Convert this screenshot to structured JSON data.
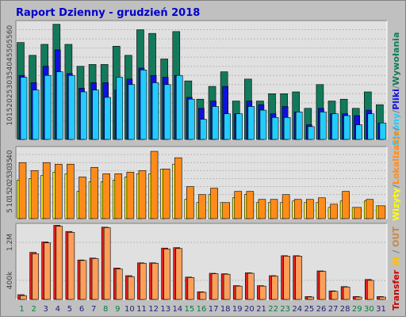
{
  "title": "Raport Dzienny -  grudzień 2018",
  "colors": {
    "background": "#c0c0c0",
    "panel": "#e0e0e0",
    "title": "#0000cc",
    "weekday_label": "#202080",
    "weekend_label": "#008040",
    "wywolania": "#127a5b",
    "pliki": "#1010e0",
    "strony": "#22ccff",
    "wizyty": "#ffff00",
    "lokalizacje": "#ff8c1a",
    "transfer_in": "#dd2222",
    "transfer_out": "#ff9e58",
    "legend_transfer": "#cc0000",
    "legend_in": "#ffc000",
    "legend_out": "#cc8844"
  },
  "legend": {
    "wywolania": "Wywołania",
    "pliki": "Pliki",
    "strony": "Strony",
    "wizyty": "Wizyty",
    "lokalizacje": "Lokalizacje",
    "transfer": "Transfer",
    "in": "IN",
    "out": "OUT",
    "sep1": "/",
    "sep2": "/",
    "sep3": "/",
    "sep4": "/"
  },
  "chart_data": [
    {
      "type": "bar",
      "panel": "top",
      "categories": [
        "1",
        "2",
        "3",
        "4",
        "5",
        "6",
        "7",
        "8",
        "9",
        "10",
        "11",
        "12",
        "13",
        "14",
        "15",
        "16",
        "17",
        "18",
        "19",
        "20",
        "21",
        "22",
        "23",
        "24",
        "25",
        "26",
        "27",
        "28",
        "29",
        "30",
        "31"
      ],
      "weekend_categories": [
        "1",
        "2",
        "8",
        "9",
        "15",
        "16",
        "22",
        "23",
        "29",
        "30"
      ],
      "ylim": [
        0,
        65
      ],
      "yticks": [
        "10",
        "15",
        "20",
        "25",
        "30",
        "35",
        "40",
        "45",
        "50",
        "55",
        "60"
      ],
      "series": [
        {
          "name": "Wywołania",
          "values": [
            53,
            46,
            52,
            63,
            52,
            40,
            41,
            41,
            51,
            46,
            60,
            58,
            44,
            59,
            32,
            22,
            29,
            37,
            21,
            33,
            21,
            25,
            25,
            26,
            17,
            30,
            21,
            22,
            17,
            26,
            19
          ]
        },
        {
          "name": "Pliki",
          "values": [
            35,
            31,
            40,
            49,
            36,
            28,
            31,
            31,
            27,
            33,
            39,
            35,
            34,
            35,
            23,
            17,
            21,
            29,
            14,
            21,
            19,
            14,
            18,
            15,
            8,
            17,
            14,
            14,
            13,
            16,
            9
          ]
        },
        {
          "name": "Strony",
          "values": [
            34,
            27,
            35,
            37,
            35,
            26,
            27,
            23,
            34,
            30,
            38,
            31,
            30,
            35,
            22,
            11,
            18,
            14,
            14,
            18,
            16,
            12,
            12,
            15,
            7,
            15,
            14,
            13,
            8,
            14,
            9
          ]
        }
      ]
    },
    {
      "type": "bar",
      "panel": "middle",
      "categories": [
        "1",
        "2",
        "3",
        "4",
        "5",
        "6",
        "7",
        "8",
        "9",
        "10",
        "11",
        "12",
        "13",
        "14",
        "15",
        "16",
        "17",
        "18",
        "19",
        "20",
        "21",
        "22",
        "23",
        "24",
        "25",
        "26",
        "27",
        "28",
        "29",
        "30",
        "31"
      ],
      "ylim": [
        0,
        45
      ],
      "yticks": [
        "5",
        "10",
        "15",
        "20",
        "25",
        "30",
        "35",
        "40"
      ],
      "series": [
        {
          "name": "Wizyty",
          "values": [
            24,
            25,
            27,
            29,
            28,
            17,
            23,
            23,
            24,
            26,
            28,
            28,
            31,
            34,
            12,
            10,
            15,
            10,
            13,
            15,
            10,
            10,
            10,
            11,
            10,
            10,
            7,
            11,
            7,
            11,
            8
          ]
        },
        {
          "name": "Lokalizacje",
          "values": [
            35,
            30,
            35,
            34,
            34,
            26,
            32,
            28,
            28,
            29,
            30,
            42,
            31,
            38,
            20,
            15,
            19,
            10,
            17,
            17,
            12,
            12,
            15,
            12,
            12,
            13,
            9,
            17,
            7,
            12,
            8
          ]
        }
      ]
    },
    {
      "type": "bar",
      "panel": "bottom",
      "categories": [
        "1",
        "2",
        "3",
        "4",
        "5",
        "6",
        "7",
        "8",
        "9",
        "10",
        "11",
        "12",
        "13",
        "14",
        "15",
        "16",
        "17",
        "18",
        "19",
        "20",
        "21",
        "22",
        "23",
        "24",
        "25",
        "26",
        "27",
        "28",
        "29",
        "30",
        "31"
      ],
      "ylim": [
        0,
        1600
      ],
      "yticks": [
        "400k",
        "1.2M"
      ],
      "series": [
        {
          "name": "IN",
          "values": [
            100,
            990,
            1210,
            1560,
            1430,
            830,
            870,
            1520,
            660,
            500,
            770,
            770,
            1080,
            1090,
            470,
            160,
            550,
            540,
            290,
            560,
            290,
            500,
            920,
            920,
            60,
            600,
            180,
            270,
            60,
            420,
            60
          ]
        },
        {
          "name": "OUT",
          "values": [
            80,
            960,
            1190,
            1540,
            1410,
            820,
            860,
            1510,
            640,
            480,
            760,
            760,
            1060,
            1070,
            460,
            150,
            540,
            530,
            280,
            550,
            280,
            490,
            910,
            910,
            50,
            590,
            170,
            260,
            50,
            400,
            50
          ]
        }
      ]
    }
  ]
}
